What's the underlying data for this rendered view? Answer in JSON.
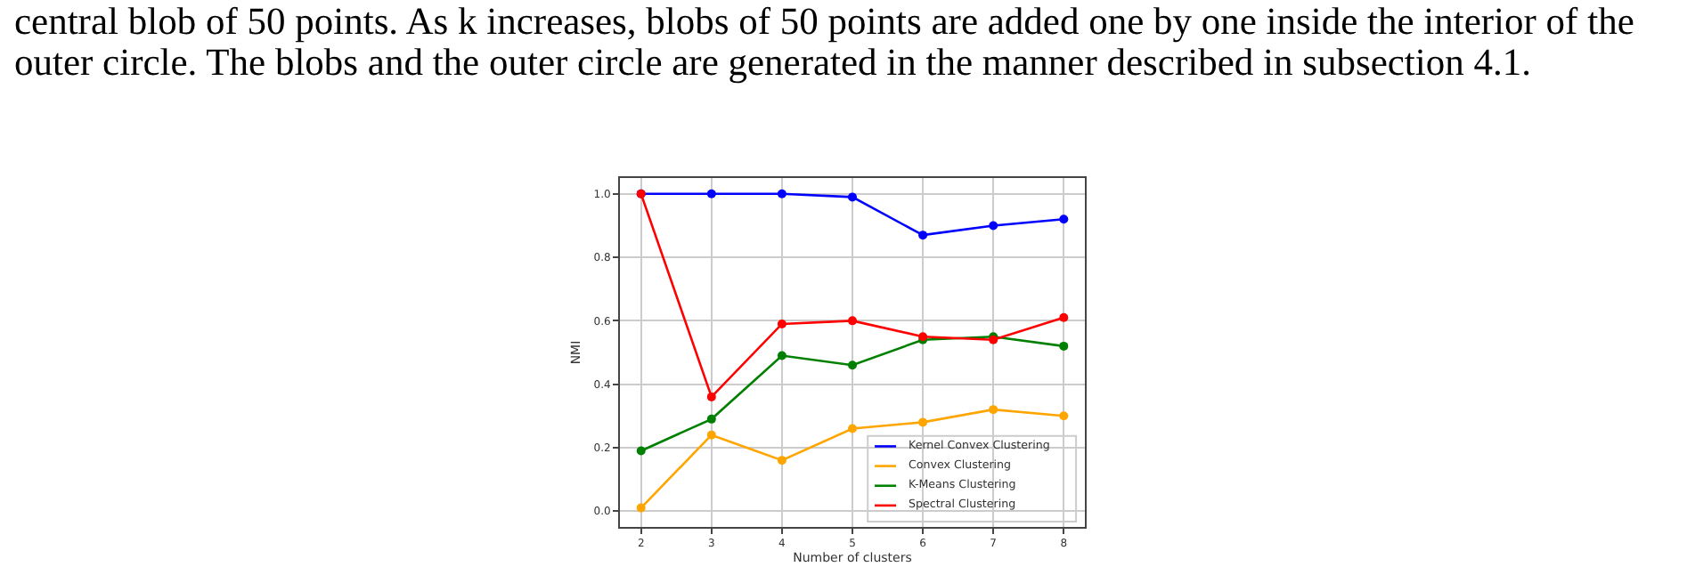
{
  "chart_data": {
    "type": "line",
    "annotations": [
      "central blob of 50 points. As k increases, blobs of 50 points are added one by one inside the interior of the",
      "outer circle. The blobs and the outer circle are generated in the manner described in subsection 4.1."
    ],
    "xlabel": "Number of clusters",
    "ylabel": "NMI",
    "x": [
      2,
      3,
      4,
      5,
      6,
      7,
      8
    ],
    "series": [
      {
        "name": "Kernel Convex Clustering",
        "color": "#0000ff",
        "values": [
          1.0,
          1.0,
          1.0,
          0.99,
          0.87,
          0.9,
          0.92
        ]
      },
      {
        "name": "Convex Clustering",
        "color": "#ffa500",
        "values": [
          0.01,
          0.24,
          0.16,
          0.26,
          0.28,
          0.32,
          0.3
        ]
      },
      {
        "name": "K-Means Clustering",
        "color": "#008000",
        "values": [
          0.19,
          0.29,
          0.49,
          0.46,
          0.54,
          0.55,
          0.52
        ]
      },
      {
        "name": "Spectral Clustering",
        "color": "#ff0000",
        "values": [
          1.0,
          0.36,
          0.59,
          0.6,
          0.55,
          0.54,
          0.61
        ]
      }
    ],
    "xlim": [
      1.7,
      8.3
    ],
    "xticks": [
      2,
      3,
      4,
      5,
      6,
      7,
      8
    ],
    "ylim": [
      -0.05,
      1.05
    ],
    "yticks": [
      {
        "value": 0,
        "label": "0.0"
      },
      0.2,
      0.4,
      0.6,
      0.8,
      {
        "value": 1,
        "label": "1.0"
      }
    ],
    "grid": true,
    "legend": "bottom right",
    "marker": "circle",
    "line_style": "solid"
  }
}
